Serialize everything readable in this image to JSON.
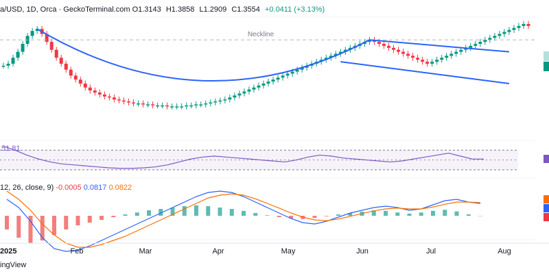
{
  "header": {
    "symbol": "a/USD, 1D, Orca · GeckoTerminal.com",
    "open": "O1.3143",
    "high": "H1.3858",
    "low": "L1.2909",
    "close": "C1.3554",
    "change": "+0.0411 (+3.13%)"
  },
  "indicators": {
    "rsi_value": "51.81",
    "macd_params": "12, 26, close, 9)",
    "macd_hist": "-0.0005",
    "macd_line": "0.0817",
    "macd_signal": "0.0822"
  },
  "footer": {
    "brand": "ingView"
  },
  "colors": {
    "up": "#089981",
    "down": "#f23645",
    "pattern": "#2962ff",
    "rsi": "#7e57c2",
    "macd_line": "#2962ff",
    "signal_line": "#ff6d00"
  },
  "chart_data": {
    "type": "candlestick",
    "annotation": "Neckline",
    "x_ticks": [
      "2025",
      "Feb",
      "Mar",
      "Apr",
      "May",
      "Jun",
      "Jul",
      "Aug"
    ],
    "close_index": [
      0.58,
      0.6,
      0.66,
      0.72,
      0.8,
      0.88,
      0.93,
      0.95,
      0.9,
      0.82,
      0.74,
      0.66,
      0.6,
      0.54,
      0.48,
      0.44,
      0.4,
      0.36,
      0.33,
      0.31,
      0.29,
      0.27,
      0.26,
      0.24,
      0.23,
      0.22,
      0.21,
      0.2,
      0.2,
      0.19,
      0.19,
      0.18,
      0.18,
      0.18,
      0.17,
      0.17,
      0.17,
      0.17,
      0.18,
      0.18,
      0.19,
      0.19,
      0.2,
      0.21,
      0.22,
      0.23,
      0.24,
      0.26,
      0.28,
      0.3,
      0.32,
      0.34,
      0.36,
      0.38,
      0.4,
      0.42,
      0.44,
      0.46,
      0.48,
      0.5,
      0.52,
      0.54,
      0.56,
      0.58,
      0.6,
      0.62,
      0.64,
      0.66,
      0.68,
      0.7,
      0.72,
      0.74,
      0.76,
      0.78,
      0.8,
      0.82,
      0.84,
      0.82,
      0.8,
      0.78,
      0.76,
      0.74,
      0.72,
      0.7,
      0.68,
      0.66,
      0.64,
      0.62,
      0.6,
      0.62,
      0.64,
      0.66,
      0.68,
      0.7,
      0.72,
      0.74,
      0.76,
      0.78,
      0.8,
      0.82,
      0.84,
      0.86,
      0.88,
      0.9,
      0.92,
      0.94,
      0.96,
      0.98,
      1.0,
      0.98
    ],
    "rsi": {
      "values": [
        78,
        70,
        60,
        52,
        46,
        42,
        40,
        38,
        36,
        34,
        33,
        33,
        34,
        36,
        40,
        46,
        52,
        56,
        58,
        56,
        54,
        52,
        50,
        48,
        46,
        50,
        56,
        60,
        58,
        54,
        52,
        50,
        48,
        46,
        48,
        52,
        56,
        60,
        64,
        58,
        52,
        51.81
      ],
      "levels": [
        70,
        30
      ]
    },
    "macd": {
      "hist": [
        -0.5,
        -0.8,
        -1.0,
        -0.9,
        -0.7,
        -0.5,
        -0.35,
        -0.25,
        -0.15,
        -0.05,
        0.05,
        0.12,
        0.2,
        0.25,
        0.3,
        0.35,
        0.38,
        0.35,
        0.3,
        0.25,
        0.18,
        0.1,
        0.02,
        -0.05,
        -0.1,
        -0.12,
        -0.08,
        -0.02,
        0.05,
        0.1,
        0.15,
        0.2,
        0.18,
        0.12,
        0.08,
        0.12,
        0.18,
        0.22,
        0.16,
        0.05,
        -0.0005
      ],
      "macd": [
        0.6,
        0.3,
        -0.2,
        -0.8,
        -1.2,
        -1.3,
        -1.25,
        -1.1,
        -0.9,
        -0.7,
        -0.5,
        -0.3,
        -0.1,
        0.1,
        0.3,
        0.5,
        0.7,
        0.85,
        0.9,
        0.85,
        0.7,
        0.5,
        0.3,
        0.1,
        -0.1,
        -0.25,
        -0.3,
        -0.2,
        -0.05,
        0.1,
        0.2,
        0.3,
        0.35,
        0.3,
        0.2,
        0.25,
        0.4,
        0.55,
        0.6,
        0.5,
        0.45
      ],
      "signal": [
        0.9,
        0.6,
        0.2,
        -0.3,
        -0.7,
        -1.0,
        -1.15,
        -1.15,
        -1.05,
        -0.9,
        -0.75,
        -0.55,
        -0.35,
        -0.15,
        0.05,
        0.25,
        0.45,
        0.65,
        0.75,
        0.8,
        0.75,
        0.62,
        0.45,
        0.28,
        0.1,
        -0.05,
        -0.15,
        -0.18,
        -0.12,
        -0.02,
        0.08,
        0.18,
        0.25,
        0.28,
        0.25,
        0.25,
        0.32,
        0.42,
        0.5,
        0.5,
        0.48
      ]
    }
  }
}
